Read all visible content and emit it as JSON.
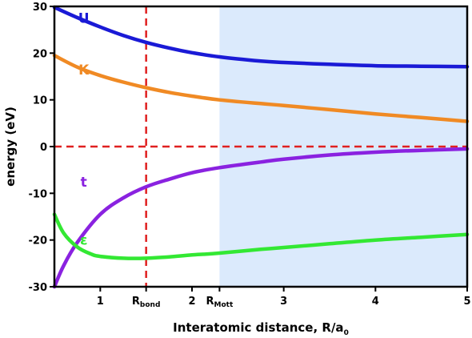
{
  "chart_data": {
    "type": "line",
    "xlabel_main": "Interatomic distance, R/a",
    "xlabel_sub": "0",
    "ylabel": "energy (eV)",
    "xlim": [
      0.5,
      5
    ],
    "ylim": [
      -30,
      30
    ],
    "xticks": [
      1,
      2,
      3,
      4,
      5
    ],
    "yticks": [
      -30,
      -20,
      -10,
      0,
      10,
      20,
      30
    ],
    "special_ticks": [
      {
        "x": 1.5,
        "main": "R",
        "sub": "bond"
      },
      {
        "x": 2.3,
        "main": "R",
        "sub": "Mott"
      }
    ],
    "shaded_region": {
      "x": [
        2.3,
        5
      ],
      "color": "#dbeafc"
    },
    "reference_lines": [
      {
        "orientation": "vertical",
        "x": 1.5,
        "color": "#e02020",
        "style": "dashed"
      },
      {
        "orientation": "horizontal",
        "y": 0,
        "color": "#e02020",
        "style": "dashed"
      }
    ],
    "series": [
      {
        "name": "U",
        "color": "#1a1ad6",
        "label_at": [
          0.82,
          27.5
        ],
        "x": [
          0.5,
          0.75,
          1.0,
          1.25,
          1.5,
          1.75,
          2.0,
          2.3,
          2.75,
          3.0,
          3.5,
          4.0,
          4.5,
          5.0
        ],
        "y": [
          29.8,
          27.6,
          25.6,
          23.8,
          22.3,
          21.1,
          20.1,
          19.2,
          18.3,
          18.0,
          17.6,
          17.3,
          17.2,
          17.1
        ]
      },
      {
        "name": "K",
        "color": "#f08a24",
        "label_at": [
          0.82,
          16.5
        ],
        "x": [
          0.5,
          0.75,
          1.0,
          1.25,
          1.5,
          1.75,
          2.0,
          2.3,
          2.75,
          3.0,
          3.5,
          4.0,
          4.5,
          5.0
        ],
        "y": [
          19.5,
          17.0,
          15.2,
          13.8,
          12.6,
          11.6,
          10.8,
          10.0,
          9.2,
          8.8,
          7.9,
          7.0,
          6.2,
          5.4
        ]
      },
      {
        "name": "t",
        "color": "#8a22e0",
        "label_at": [
          0.82,
          -7.5
        ],
        "x": [
          0.5,
          0.6,
          0.75,
          1.0,
          1.25,
          1.5,
          1.75,
          2.0,
          2.3,
          2.75,
          3.0,
          3.5,
          4.0,
          4.5,
          5.0
        ],
        "y": [
          -30.0,
          -25.5,
          -20.5,
          -14.5,
          -11.0,
          -8.6,
          -7.0,
          -5.6,
          -4.5,
          -3.3,
          -2.7,
          -1.8,
          -1.2,
          -0.8,
          -0.5
        ]
      },
      {
        "name": "ε",
        "color": "#33e833",
        "label_at": [
          0.82,
          -20.0
        ],
        "x": [
          0.5,
          0.6,
          0.75,
          0.9,
          1.0,
          1.25,
          1.5,
          1.75,
          2.0,
          2.3,
          2.75,
          3.0,
          3.5,
          4.0,
          4.5,
          5.0
        ],
        "y": [
          -14.5,
          -18.5,
          -21.5,
          -23.0,
          -23.5,
          -23.9,
          -23.9,
          -23.6,
          -23.2,
          -22.8,
          -22.0,
          -21.6,
          -20.8,
          -20.0,
          -19.4,
          -18.8
        ]
      }
    ]
  }
}
